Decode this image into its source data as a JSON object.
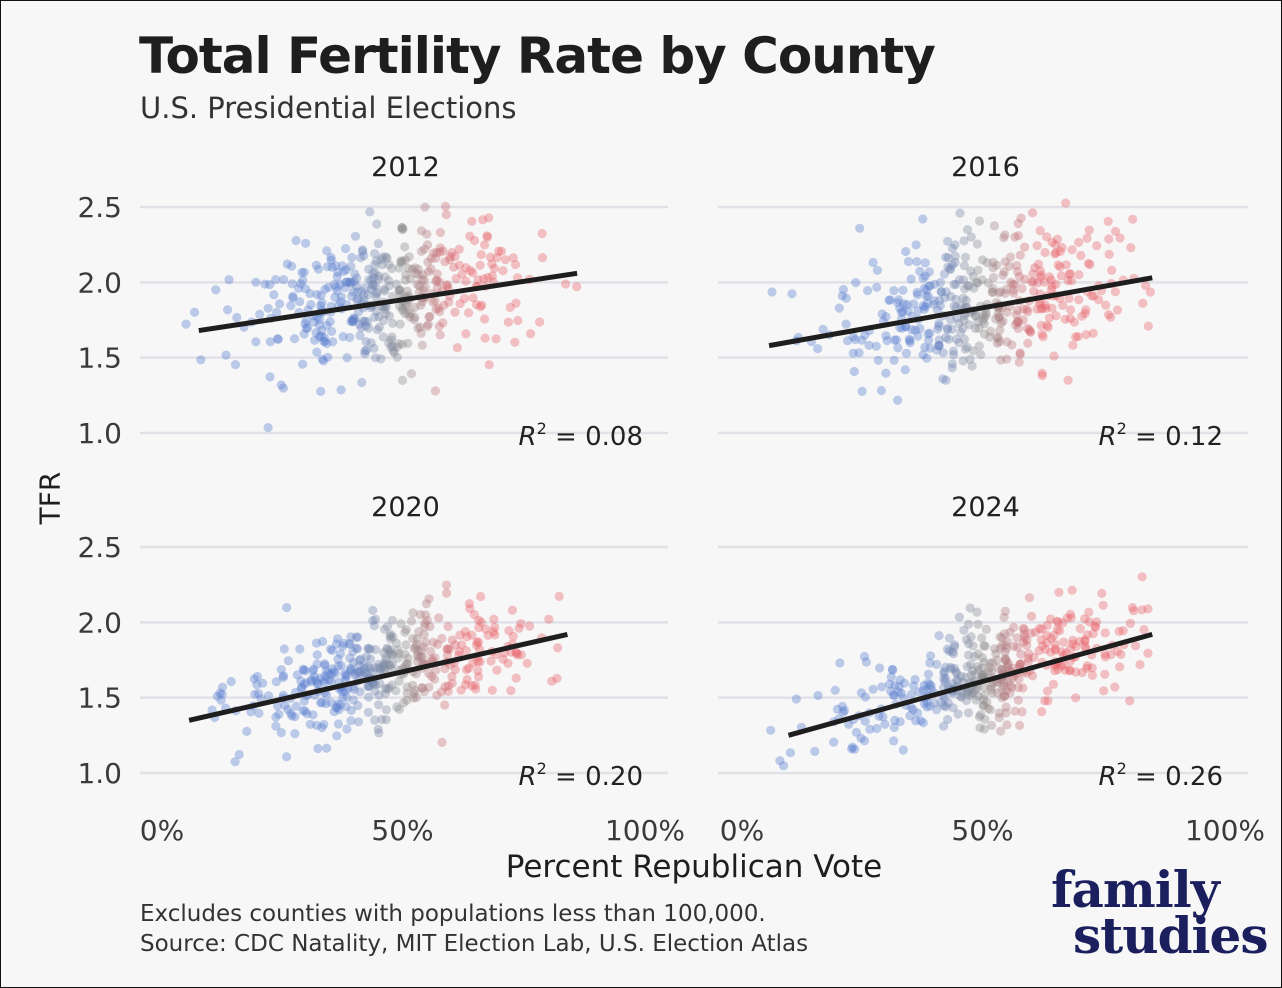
{
  "title": "Total Fertility Rate by County",
  "subtitle": "U.S. Presidential Elections",
  "footnote_1": "Excludes counties with populations less than 100,000.",
  "footnote_2": "Source: CDC Natality, MIT Election Lab, U.S. Election Atlas",
  "logo": {
    "line1": "family",
    "line2": "studies"
  },
  "colors": {
    "democrat": "#5a7fd0",
    "neutral": "#8c8c8c",
    "republican": "#e8606a",
    "trend": "#1e1e1e",
    "grid": "#e1e1e8",
    "logo": "#1b1f5e"
  },
  "chart_data": {
    "type": "scatter",
    "xlabel": "Percent Republican Vote",
    "ylabel": "TFR",
    "x_ticks": [
      "0%",
      "50%",
      "100%"
    ],
    "y_ticks": [
      "1.0",
      "1.5",
      "2.0",
      "2.5"
    ],
    "xlim": [
      0,
      100
    ],
    "ylim": [
      1.0,
      2.5
    ],
    "grid": true,
    "panels": [
      {
        "title": "2012",
        "r2_value": "= 0.08",
        "trend": {
          "x": [
            8,
            86
          ],
          "y": [
            1.68,
            2.06
          ]
        },
        "seed": 12,
        "cloud": {
          "x_mean": 47,
          "x_sd": 15,
          "y_center": 1.68,
          "y_slope": 0.0049,
          "y_sd": 0.22
        }
      },
      {
        "title": "2016",
        "r2_value": "= 0.12",
        "trend": {
          "x": [
            6,
            85
          ],
          "y": [
            1.58,
            2.03
          ]
        },
        "seed": 16,
        "cloud": {
          "x_mean": 50,
          "x_sd": 16,
          "y_center": 1.58,
          "y_slope": 0.0057,
          "y_sd": 0.22
        }
      },
      {
        "title": "2020",
        "r2_value": "= 0.20",
        "trend": {
          "x": [
            6,
            84
          ],
          "y": [
            1.35,
            1.92
          ]
        },
        "seed": 20,
        "cloud": {
          "x_mean": 47,
          "x_sd": 16,
          "y_center": 1.35,
          "y_slope": 0.0073,
          "y_sd": 0.18
        }
      },
      {
        "title": "2024",
        "r2_value": "= 0.26",
        "trend": {
          "x": [
            10,
            85
          ],
          "y": [
            1.25,
            1.92
          ]
        },
        "seed": 24,
        "cloud": {
          "x_mean": 49,
          "x_sd": 16,
          "y_center": 1.25,
          "y_slope": 0.008,
          "y_sd": 0.17
        }
      }
    ]
  }
}
